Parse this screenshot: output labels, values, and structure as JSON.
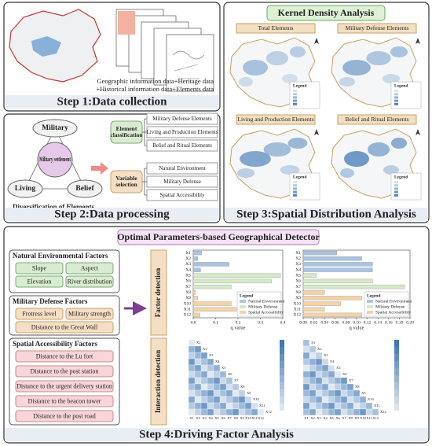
{
  "step1": {
    "caption": "Step 1:Data collection",
    "sources": [
      "Geographic information data+Heritage data",
      "+Historical information data+Elements data"
    ]
  },
  "step2": {
    "caption": "Step 2:Data processing",
    "nodes": [
      "Military",
      "Military settlement",
      "Living",
      "Belief"
    ],
    "diagram_label": "Diversification of Elements",
    "element_classification": {
      "label": "Element classification",
      "items": [
        "Military Defense Elements",
        "Living and Production Elements",
        "Belief and Ritual Elements"
      ]
    },
    "variable_selection": {
      "label": "Variable selection",
      "items": [
        "Natural Environment",
        "Military Defense",
        "Spatial Accessibility"
      ]
    }
  },
  "step3": {
    "caption": "Step 3:Spatial Distribution Analysis",
    "title": "Kernel Density Analysis",
    "maps": [
      "Total Elements",
      "Military Defense Elements",
      "Living and Production Elements",
      "Belief and Ritual Elements"
    ],
    "legend_title": "Legend"
  },
  "step4": {
    "caption": "Step 4:Driving Factor Analysis",
    "title": "Optimal Parameters-based Geographical Detector",
    "factor_groups": [
      {
        "name": "Natural Environmental Factors",
        "items": [
          "Slope",
          "Aspect",
          "Elevation",
          "River distribution"
        ]
      },
      {
        "name": "Military Defense Factors",
        "items": [
          "Frotress level",
          "Military strength",
          "Distance to the Great Wall"
        ]
      },
      {
        "name": "Spatial Accessibility Factors",
        "items": [
          "Distance to the Lu fort",
          "Distance to the post station",
          "Distance to the urgent delivery station",
          "Distance to the beacon tower",
          "Distance to the post road"
        ]
      }
    ],
    "factor_detection_label": "Factor detection",
    "interaction_detection_label": "Interaction detection",
    "legend_title": "Legend",
    "legend": [
      {
        "name": "Natural Environment",
        "color": "#a9c4e0"
      },
      {
        "name": "Military Defense",
        "color": "#d5e8c8"
      },
      {
        "name": "Spatial Accessibility",
        "color": "#f2d3a8"
      }
    ],
    "x_label": "q value",
    "charts": [
      {
        "type": "bar",
        "categories": [
          "X1",
          "X2",
          "X3",
          "X4",
          "X5",
          "X6",
          "X7",
          "X8",
          "X9",
          "X10",
          "X11",
          "X12"
        ],
        "values": [
          0.038,
          0.02,
          0.16,
          0.033,
          0.39,
          0.35,
          0.17,
          0.01,
          0.02,
          0.17,
          0.21,
          0.03
        ],
        "colors": [
          "#a9c4e0",
          "#a9c4e0",
          "#a9c4e0",
          "#a9c4e0",
          "#d5e8c8",
          "#d5e8c8",
          "#d5e8c8",
          "#f2d3a8",
          "#f2d3a8",
          "#f2d3a8",
          "#f2d3a8",
          "#f2d3a8"
        ],
        "xlim": [
          0,
          0.4
        ],
        "xticks": [
          {
            "value": 0,
            "label": "0.0"
          },
          0.1,
          0.2,
          0.3,
          0.4
        ]
      },
      {
        "type": "bar",
        "categories": [
          "X1",
          "X2",
          "X3",
          "X4",
          "X5",
          "X6",
          "X7",
          "X8",
          "X9",
          "X10",
          "X11",
          "X12"
        ],
        "values": [
          0.063,
          0.11,
          0.13,
          0.13,
          0.025,
          0.13,
          0.19,
          0.04,
          0.11,
          0.07,
          0.04,
          0.11
        ],
        "colors": [
          "#a9c4e0",
          "#a9c4e0",
          "#a9c4e0",
          "#a9c4e0",
          "#d5e8c8",
          "#d5e8c8",
          "#d5e8c8",
          "#f2d3a8",
          "#f2d3a8",
          "#f2d3a8",
          "#f2d3a8",
          "#f2d3a8"
        ],
        "xlim": [
          0,
          0.2
        ],
        "xticks": [
          {
            "value": 0,
            "label": "0.00"
          },
          0.02,
          0.04,
          0.06,
          0.08,
          {
            "value": 0.1,
            "label": "0.10"
          },
          0.12,
          0.14,
          0.16,
          0.18,
          {
            "value": 0.2,
            "label": "0.20"
          }
        ]
      }
    ]
  }
}
